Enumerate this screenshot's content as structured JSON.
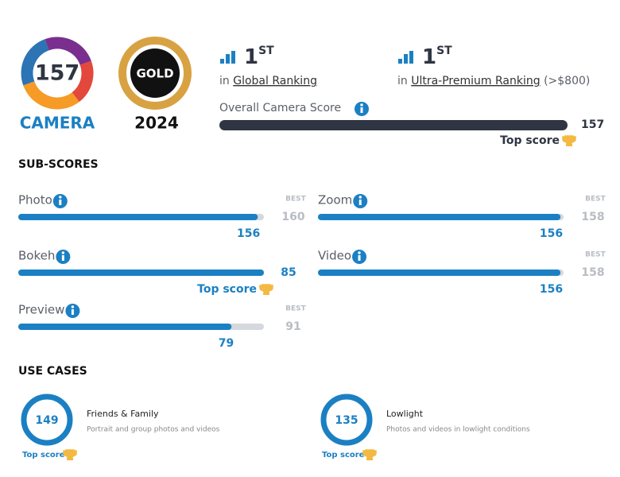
{
  "badges": {
    "camera": {
      "score": 157,
      "label": "CAMERA"
    },
    "gold": {
      "label": "GOLD",
      "year": "2024"
    }
  },
  "rankings": [
    {
      "rank": "1",
      "suffix": "ST",
      "prefix": "in",
      "name": "Global Ranking"
    },
    {
      "rank": "1",
      "suffix": "ST",
      "prefix": "in",
      "name": "Ultra-Premium Ranking",
      "note": "(>$800)"
    }
  ],
  "overall": {
    "label": "Overall Camera Score",
    "score": 157,
    "top_label": "Top score"
  },
  "sub_scores": {
    "title": "SUB-SCORES",
    "best_label": "BEST",
    "items": [
      {
        "name": "Photo",
        "score": 156,
        "best": 160
      },
      {
        "name": "Zoom",
        "score": 156,
        "best": 158
      },
      {
        "name": "Bokeh",
        "score": 85,
        "top_label": "Top score"
      },
      {
        "name": "Video",
        "score": 156,
        "best": 158
      },
      {
        "name": "Preview",
        "score": 79,
        "best": 91
      }
    ]
  },
  "use_cases": {
    "title": "USE CASES",
    "items": [
      {
        "score": 149,
        "name": "Friends & Family",
        "description": "Portrait and group photos and videos",
        "top_label": "Top score"
      },
      {
        "score": 135,
        "name": "Lowlight",
        "description": "Photos and videos in lowlight conditions",
        "top_label": "Top score"
      }
    ]
  }
}
